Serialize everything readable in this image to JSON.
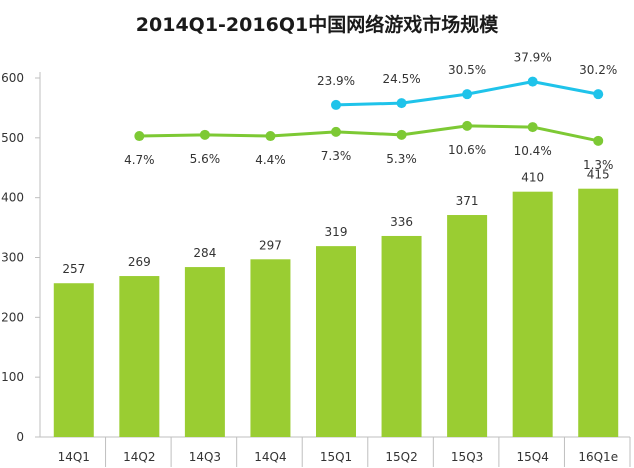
{
  "chart_data": {
    "type": "bar",
    "title": "2014Q1-2016Q1中国网络游戏市场规模",
    "categories": [
      "14Q1",
      "14Q2",
      "14Q3",
      "14Q4",
      "15Q1",
      "15Q2",
      "15Q3",
      "15Q4",
      "16Q1e"
    ],
    "values": [
      257,
      269,
      284,
      297,
      319,
      336,
      371,
      410,
      415
    ],
    "bar_labels": [
      "257",
      "269",
      "284",
      "297",
      "319",
      "336",
      "371",
      "410",
      "415"
    ],
    "ylim": [
      0,
      600
    ],
    "yticks": [
      "0",
      "100",
      "200",
      "300",
      "400",
      "500",
      "600"
    ],
    "lines": [
      {
        "color": "#7dc934",
        "values_on_left_axis": [
          503,
          505,
          503,
          510,
          505,
          520,
          518,
          495
        ],
        "start_index": 1,
        "labels": [
          "4.7%",
          "5.6%",
          "4.4%",
          "7.3%",
          "5.3%",
          "10.6%",
          "10.4%",
          "1.3%"
        ]
      },
      {
        "color": "#1fc3ea",
        "values_on_left_axis": [
          555,
          558,
          573,
          594,
          573
        ],
        "start_index": 4,
        "labels": [
          "23.9%",
          "24.5%",
          "30.5%",
          "37.9%",
          "30.2%"
        ]
      }
    ],
    "colors": {
      "bar": "#9acd32",
      "axis": "#bfbfbf"
    },
    "xlabel": "",
    "ylabel": ""
  }
}
